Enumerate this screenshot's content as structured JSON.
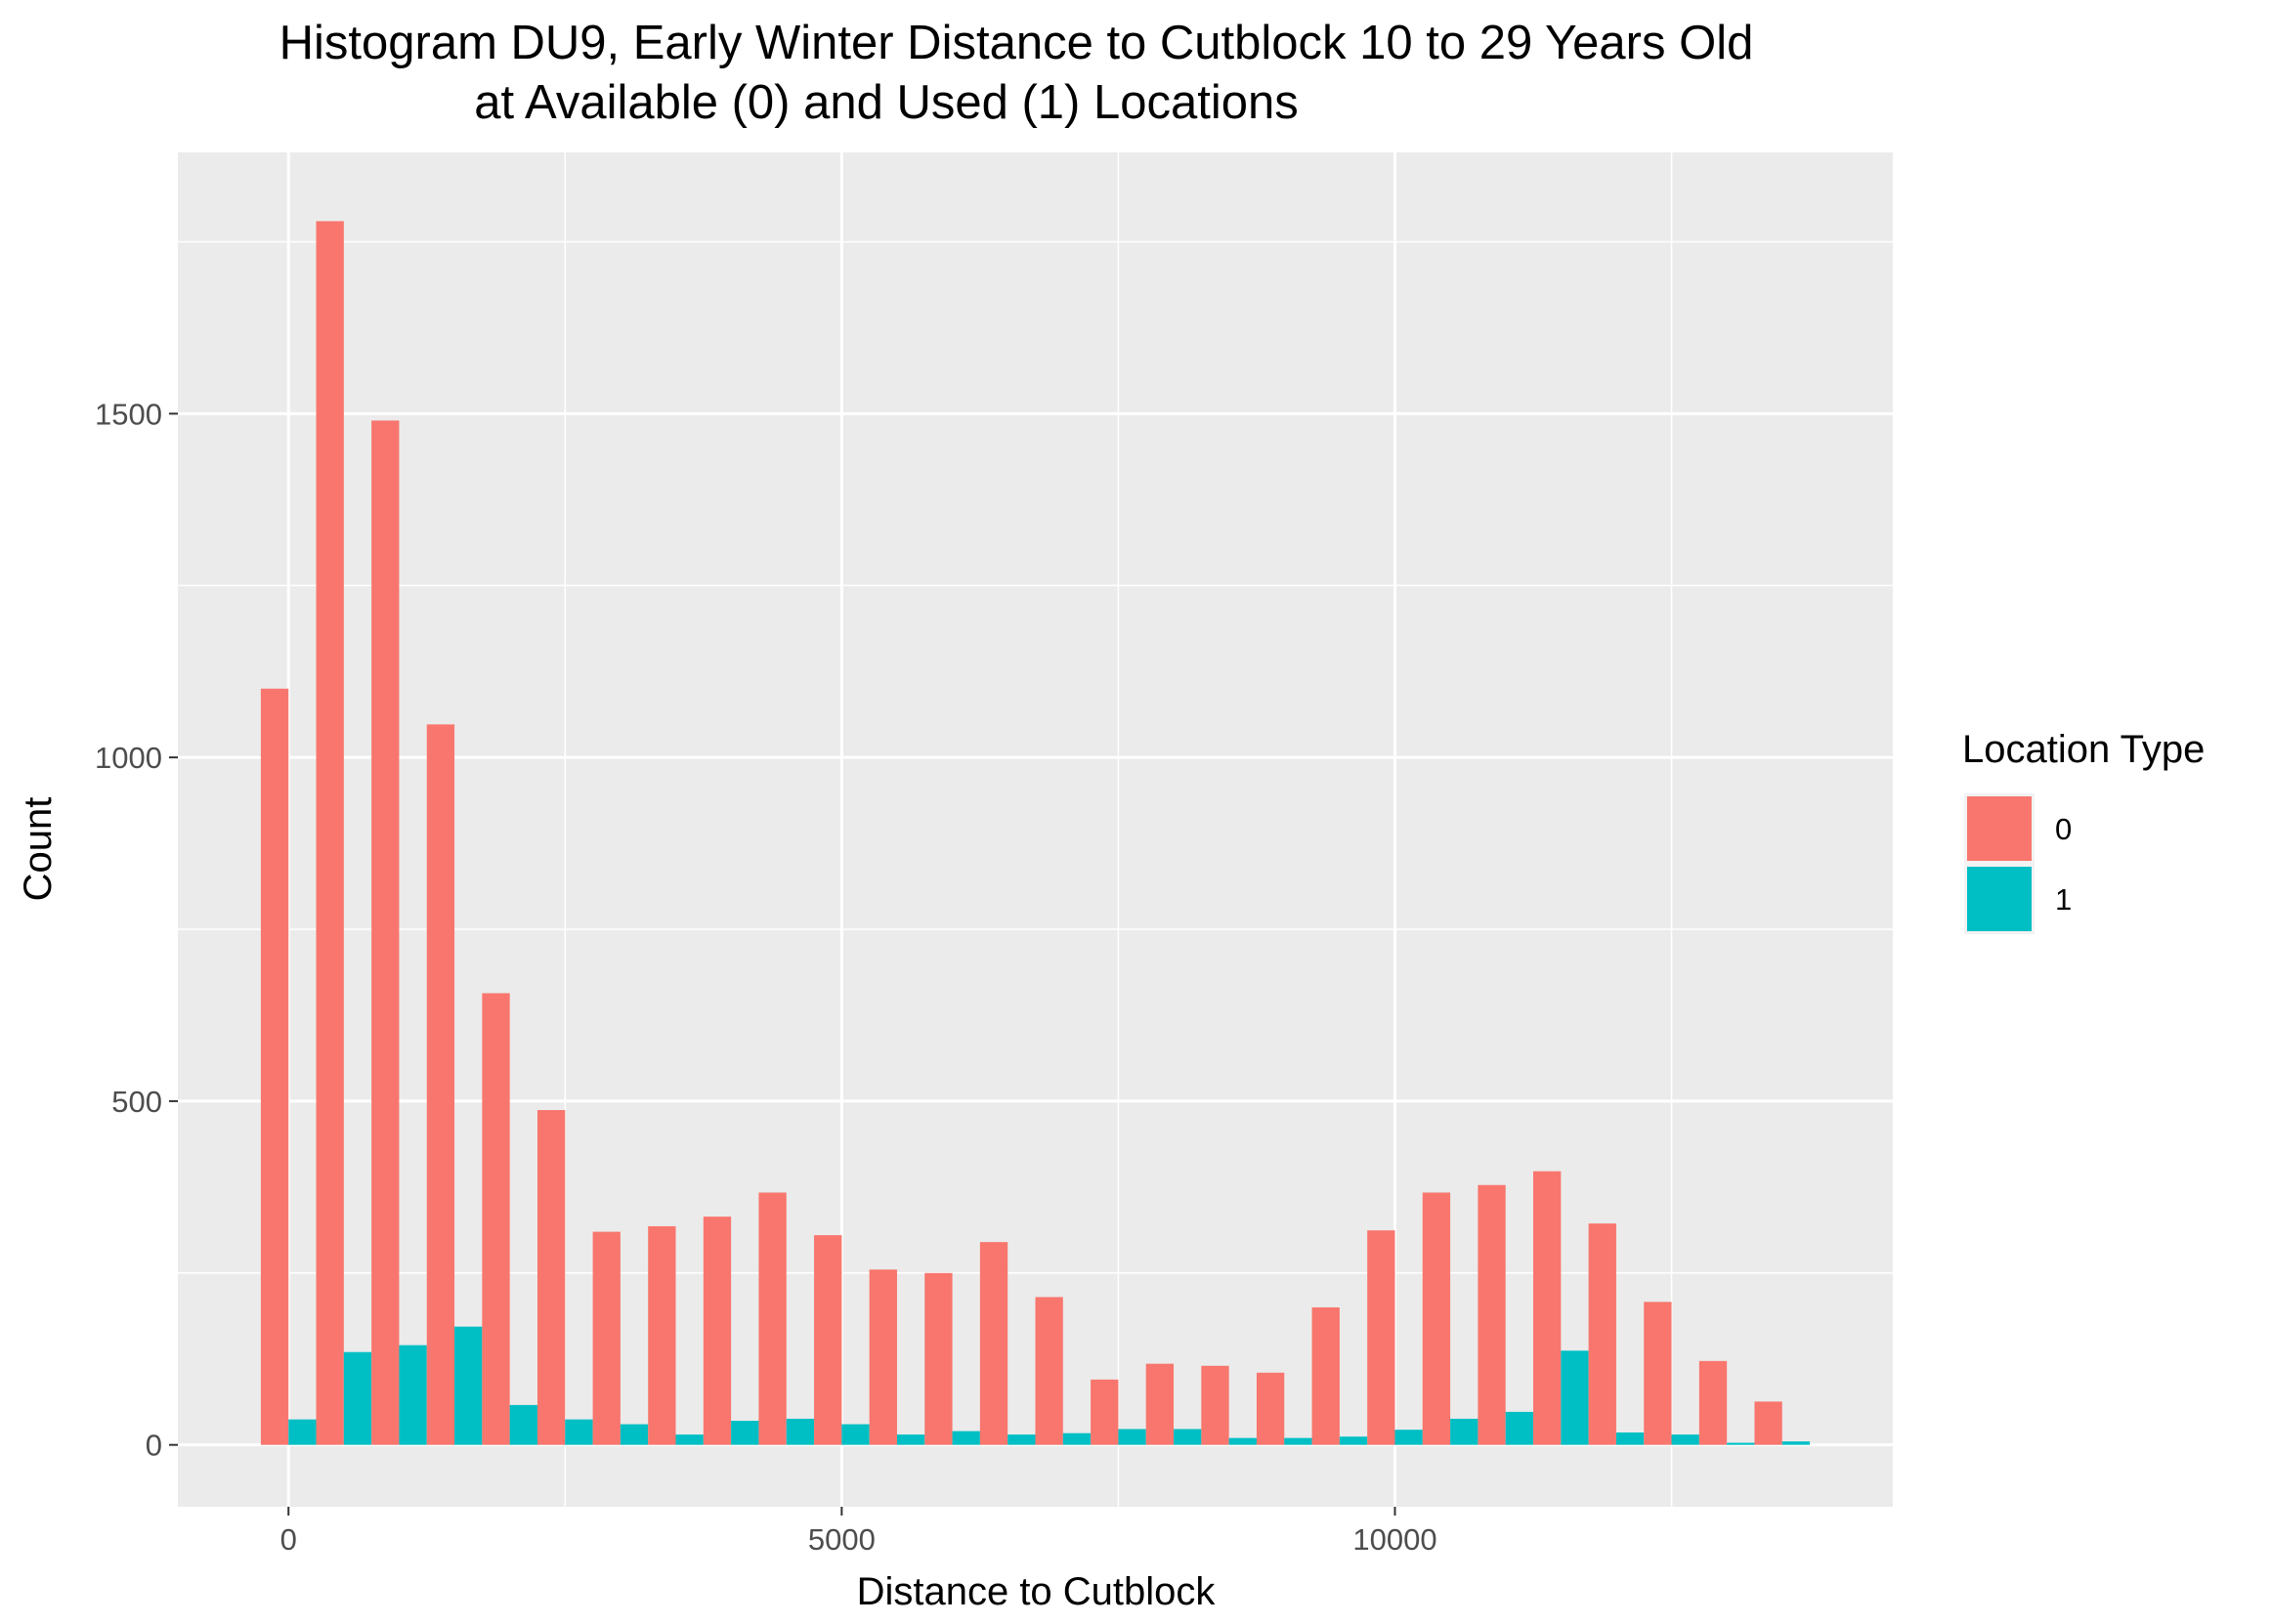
{
  "chart_data": {
    "type": "bar",
    "title": [
      "Histogram DU9, Early Winter Distance to Cutblock 10 to 29 Years Old",
      "at Available (0) and Used (1) Locations"
    ],
    "xlabel": "Distance to Cutblock",
    "ylabel": "Count",
    "xlim": [
      -1000,
      14500
    ],
    "ylim": [
      -90,
      1880
    ],
    "x_ticks": [
      0,
      5000,
      10000
    ],
    "x_tick_labels": [
      "0",
      "5000",
      "10000"
    ],
    "y_ticks": [
      0,
      500,
      1000,
      1500
    ],
    "y_tick_labels": [
      "0",
      "500",
      "1000",
      "1500"
    ],
    "grid": true,
    "legend": {
      "title": "Location Type",
      "position": "right"
    },
    "bin_width": 500,
    "x": [
      0,
      500,
      1000,
      1500,
      2000,
      2500,
      3000,
      3500,
      4000,
      4500,
      5000,
      5500,
      6000,
      6500,
      7000,
      7500,
      8000,
      8500,
      9000,
      9500,
      10000,
      10500,
      11000,
      11500,
      12000,
      12500,
      13000,
      13500
    ],
    "series": [
      {
        "name": "0",
        "color": "#F8766D",
        "values": [
          1100,
          1780,
          1490,
          1048,
          657,
          487,
          310,
          318,
          332,
          367,
          305,
          255,
          250,
          295,
          215,
          95,
          118,
          115,
          105,
          200,
          312,
          367,
          378,
          398,
          322,
          208,
          122,
          63
        ]
      },
      {
        "name": "1",
        "color": "#00BFC4",
        "values": [
          37,
          135,
          145,
          172,
          58,
          37,
          30,
          15,
          35,
          38,
          30,
          15,
          20,
          15,
          17,
          23,
          23,
          10,
          10,
          12,
          22,
          38,
          48,
          137,
          18,
          15,
          3,
          5
        ]
      }
    ]
  }
}
